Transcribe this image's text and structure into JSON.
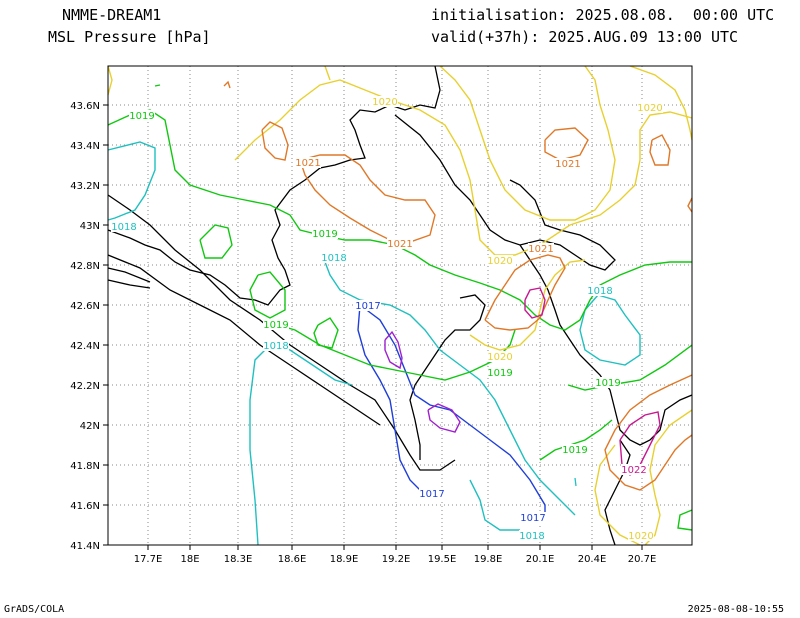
{
  "header": {
    "model": "NMME-DREAM1",
    "field": "MSL Pressure [hPa]",
    "init_label": "initialisation:",
    "init_value": "2025.08.08.  00:00 UTC",
    "valid_label": "valid(+37h):",
    "valid_value": "2025.AUG.09 13:00 UTC"
  },
  "footer": {
    "left": "GrADS/COLA",
    "right": "2025-08-08-10:55"
  },
  "map": {
    "lon_ticks": [
      "17.7E",
      "18E",
      "18.3E",
      "18.6E",
      "18.9E",
      "19.2E",
      "19.5E",
      "19.8E",
      "20.1E",
      "20.4E",
      "20.7E"
    ],
    "lat_ticks": [
      "43.6N",
      "43.4N",
      "43.2N",
      "43N",
      "42.8N",
      "42.6N",
      "42.4N",
      "42.2N",
      "42N",
      "41.8N",
      "41.6N",
      "41.4N"
    ],
    "grid": true,
    "levels": [
      {
        "level": 1017,
        "color": "#1f3fd8"
      },
      {
        "level": 1018,
        "color": "#20c0c0"
      },
      {
        "level": 1019,
        "color": "#10c810"
      },
      {
        "level": 1020,
        "color": "#e8d030"
      },
      {
        "level": 1021,
        "color": "#e07828"
      },
      {
        "level": 1022,
        "color": "#c81890"
      },
      {
        "level": 1023,
        "color": "#a020d0"
      }
    ],
    "contour_labels": [
      {
        "text": "1019",
        "color": "#10c810"
      },
      {
        "text": "1020",
        "color": "#e8d030"
      },
      {
        "text": "1020",
        "color": "#e8d030"
      },
      {
        "text": "1021",
        "color": "#e07828"
      },
      {
        "text": "1021",
        "color": "#e07828"
      },
      {
        "text": "1018",
        "color": "#20c0c0"
      },
      {
        "text": "1019",
        "color": "#10c810"
      },
      {
        "text": "1021",
        "color": "#e07828"
      },
      {
        "text": "1020",
        "color": "#e8d030"
      },
      {
        "text": "1021",
        "color": "#e07828"
      },
      {
        "text": "1018",
        "color": "#20c0c0"
      },
      {
        "text": "1018",
        "color": "#20c0c0"
      },
      {
        "text": "1017",
        "color": "#1f3fd8"
      },
      {
        "text": "1019",
        "color": "#10c810"
      },
      {
        "text": "1018",
        "color": "#20c0c0"
      },
      {
        "text": "1020",
        "color": "#e8d030"
      },
      {
        "text": "1019",
        "color": "#10c810"
      },
      {
        "text": "1019",
        "color": "#10c810"
      },
      {
        "text": "1019",
        "color": "#10c810"
      },
      {
        "text": "1022",
        "color": "#c81890"
      },
      {
        "text": "1017",
        "color": "#1f3fd8"
      },
      {
        "text": "1017",
        "color": "#1f3fd8"
      },
      {
        "text": "1018",
        "color": "#20c0c0"
      },
      {
        "text": "1020",
        "color": "#e8d030"
      }
    ]
  }
}
